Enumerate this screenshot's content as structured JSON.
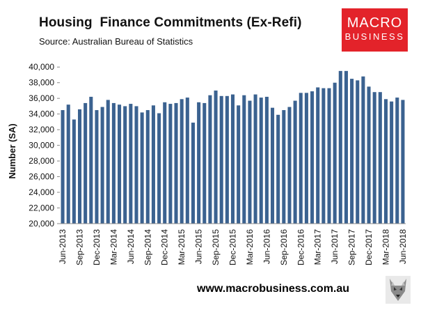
{
  "brand": {
    "line1": "MACRO",
    "line2": "BUSINESS",
    "color": "#e3232a",
    "website": "www.macrobusiness.com.au"
  },
  "chart_data": {
    "type": "bar",
    "title": "Housing  Finance Commitments (Ex-Refi)",
    "subtitle": "Source: Australian Bureau of Statistics",
    "ylabel": "Number (SA)",
    "xlabel": "",
    "ylim": [
      20000,
      41000
    ],
    "yticks": [
      20000,
      22000,
      24000,
      26000,
      28000,
      30000,
      32000,
      34000,
      36000,
      38000,
      40000
    ],
    "ytick_labels": [
      "20,000",
      "22,000",
      "24,000",
      "26,000",
      "28,000",
      "30,000",
      "32,000",
      "34,000",
      "36,000",
      "38,000",
      "40,000"
    ],
    "bar_color": "#3b6290",
    "grid": false,
    "legend": "none",
    "x_tick_labels": [
      "Jun-2013",
      "Sep-2013",
      "Dec-2013",
      "Mar-2014",
      "Jun-2014",
      "Sep-2014",
      "Dec-2014",
      "Mar-2015",
      "Jun-2015",
      "Sep-2015",
      "Dec-2015",
      "Mar-2016",
      "Jun-2016",
      "Sep-2016",
      "Dec-2016",
      "Mar-2017",
      "Jun-2017",
      "Sep-2017",
      "Dec-2017",
      "Mar-2018",
      "Jun-2018"
    ],
    "categories": [
      "Jun-2013",
      "Jul-2013",
      "Aug-2013",
      "Sep-2013",
      "Oct-2013",
      "Nov-2013",
      "Dec-2013",
      "Jan-2014",
      "Feb-2014",
      "Mar-2014",
      "Apr-2014",
      "May-2014",
      "Jun-2014",
      "Jul-2014",
      "Aug-2014",
      "Sep-2014",
      "Oct-2014",
      "Nov-2014",
      "Dec-2014",
      "Jan-2015",
      "Feb-2015",
      "Mar-2015",
      "Apr-2015",
      "May-2015",
      "Jun-2015",
      "Jul-2015",
      "Aug-2015",
      "Sep-2015",
      "Oct-2015",
      "Nov-2015",
      "Dec-2015",
      "Jan-2016",
      "Feb-2016",
      "Mar-2016",
      "Apr-2016",
      "May-2016",
      "Jun-2016",
      "Jul-2016",
      "Aug-2016",
      "Sep-2016",
      "Oct-2016",
      "Nov-2016",
      "Dec-2016",
      "Jan-2017",
      "Feb-2017",
      "Mar-2017",
      "Apr-2017",
      "May-2017",
      "Jun-2017",
      "Jul-2017",
      "Aug-2017",
      "Sep-2017",
      "Oct-2017",
      "Nov-2017",
      "Dec-2017",
      "Jan-2018",
      "Feb-2018",
      "Mar-2018",
      "Apr-2018",
      "May-2018",
      "Jun-2018"
    ],
    "values": [
      34500,
      35200,
      33300,
      34600,
      35400,
      36200,
      34500,
      34900,
      35800,
      35400,
      35200,
      35000,
      35300,
      35000,
      34200,
      34500,
      35100,
      34100,
      35500,
      35300,
      35400,
      35900,
      36100,
      32900,
      35500,
      35400,
      36400,
      37000,
      36300,
      36300,
      36500,
      35100,
      36400,
      35700,
      36500,
      36100,
      36200,
      34800,
      33900,
      34500,
      34900,
      35700,
      36700,
      36700,
      36900,
      37400,
      37300,
      37300,
      38000,
      39500,
      39500,
      38500,
      38300,
      38800,
      37500,
      36800,
      36800,
      35900,
      35600,
      36100,
      35800
    ]
  }
}
